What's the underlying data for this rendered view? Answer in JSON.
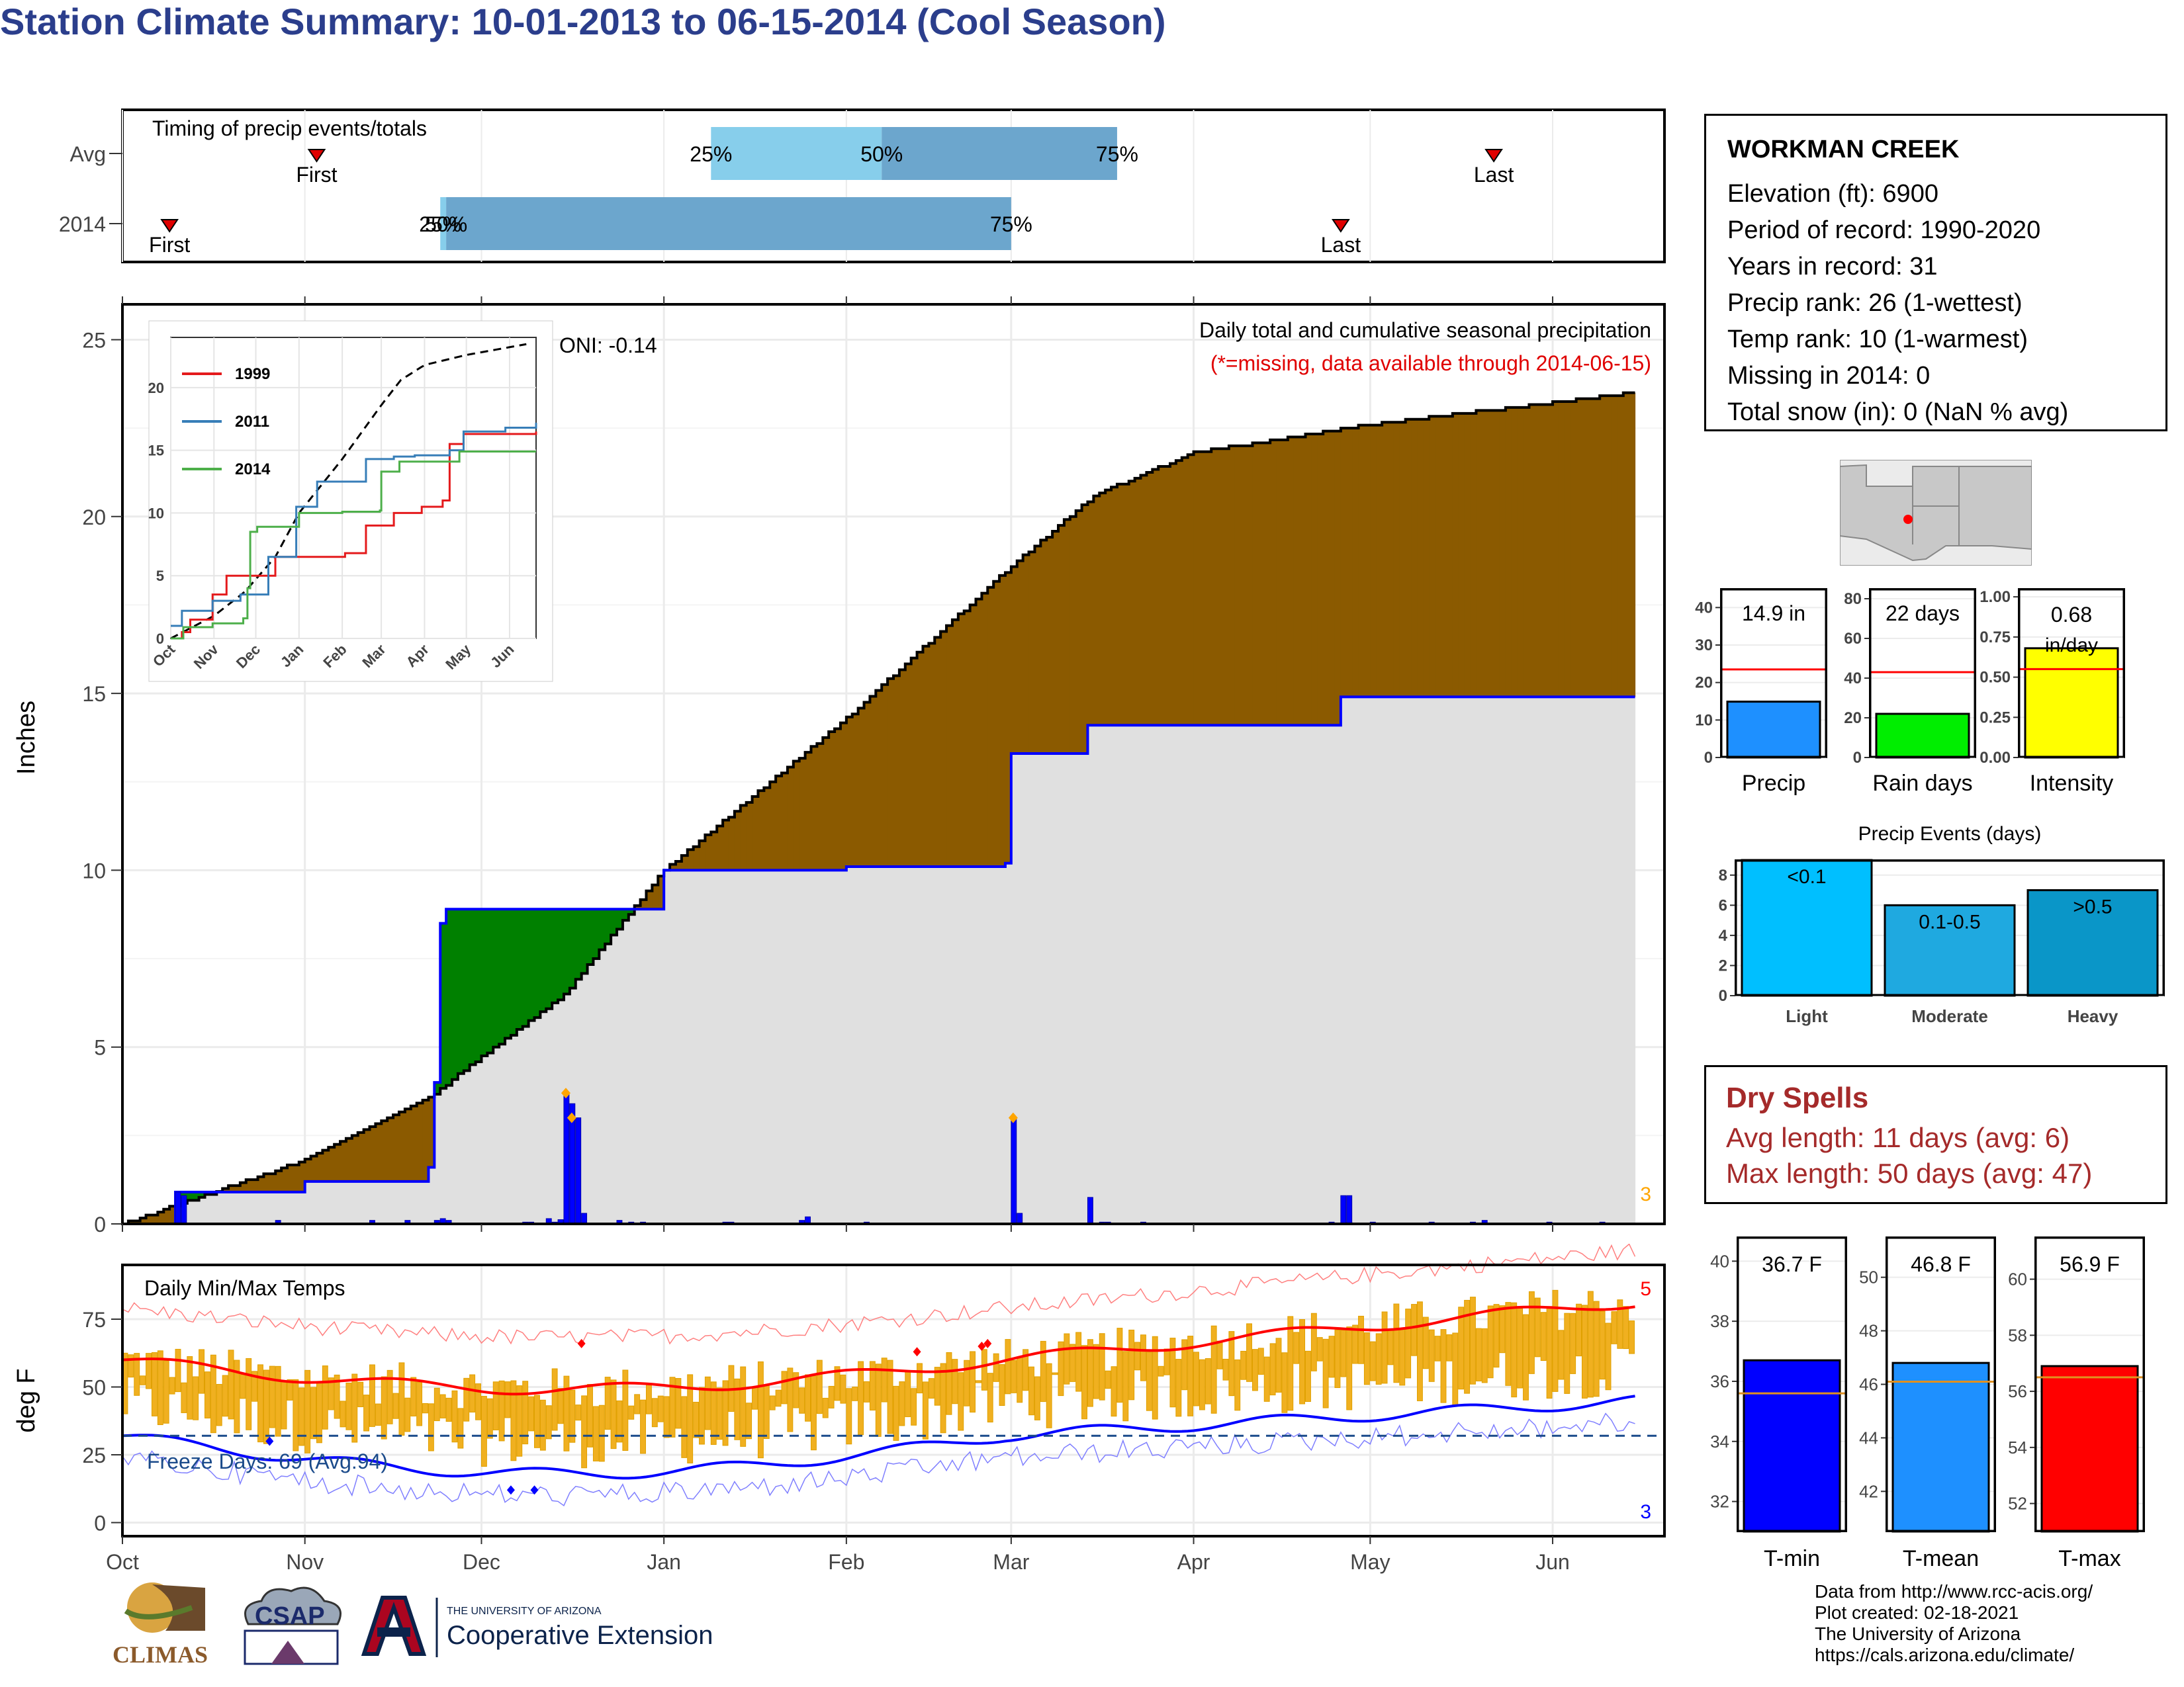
{
  "title": "Station Climate Summary: 10-01-2013 to 06-15-2014 (Cool Season)",
  "timing": {
    "label": "Timing of precip events/totals",
    "rows": [
      {
        "name": "Avg",
        "first": "First",
        "last": "Last",
        "p25": "25%",
        "p50": "50%",
        "p75": "75%",
        "p25_date": "2014-01-09",
        "p50_date": "2014-02-07",
        "p75_date": "2014-03-19",
        "first_date": "2013-11-03",
        "last_date": "2014-05-22"
      },
      {
        "name": "2014",
        "first": "First",
        "last": "Last",
        "p25": "25%",
        "p50": "50%",
        "p75": "75%",
        "p25_date": "2013-11-24",
        "p50_date": "2013-11-25",
        "p75_date": "2014-03-01",
        "first_date": "2013-10-09",
        "last_date": "2014-04-26"
      }
    ]
  },
  "main_chart": {
    "ylabel": "Inches",
    "oni": "ONI: -0.14",
    "caption": "Daily total and cumulative seasonal precipitation",
    "missing_note": "(*=missing, data available through 2014-06-15)",
    "count_label": "3",
    "x_ticks": [
      "Oct",
      "Nov",
      "Dec",
      "Jan",
      "Feb",
      "Mar",
      "Apr",
      "May",
      "Jun"
    ],
    "y_ticks": [
      "0",
      "5",
      "10",
      "15",
      "20",
      "25"
    ]
  },
  "inset": {
    "legend": [
      "1999",
      "2011",
      "2014"
    ],
    "colors": [
      "#e41a1c",
      "#377eb8",
      "#4daf4a"
    ],
    "x_ticks": [
      "Oct",
      "Nov",
      "Dec",
      "Jan",
      "Feb",
      "Mar",
      "Apr",
      "May",
      "Jun"
    ],
    "y_ticks": [
      "0",
      "5",
      "10",
      "15",
      "20"
    ]
  },
  "temp_chart": {
    "ylabel": "deg F",
    "label": "Daily Min/Max Temps",
    "freeze": "Freeze Days: 69 (Avg:94)",
    "count_max": "5",
    "count_min": "3",
    "x_ticks": [
      "Oct",
      "Nov",
      "Dec",
      "Jan",
      "Feb",
      "Mar",
      "Apr",
      "May",
      "Jun"
    ],
    "y_ticks": [
      "0",
      "25",
      "50",
      "75"
    ]
  },
  "info": {
    "station": "WORKMAN CREEK",
    "elevation": "Elevation (ft): 6900",
    "period": "Period of record: 1990-2020",
    "years": "Years in record: 31",
    "precip_rank": "Precip rank: 26 (1-wettest)",
    "temp_rank": "Temp rank: 10 (1-warmest)",
    "missing": "Missing in 2014: 0",
    "snow": "Total snow (in): 0 (NaN % avg)"
  },
  "mini_bars": [
    {
      "label": "Precip",
      "value_text": "14.9 in",
      "value": 14.9,
      "avg": 23.5,
      "max": 45,
      "ticks": [
        "0",
        "10",
        "20",
        "30",
        "40"
      ],
      "color": "#1e90ff"
    },
    {
      "label": "Rain days",
      "value_text": "22 days",
      "value": 22,
      "avg": 43,
      "max": 85,
      "ticks": [
        "0",
        "20",
        "40",
        "60",
        "80"
      ],
      "color": "#00ee00"
    },
    {
      "label": "Intensity",
      "value_text": "0.68 in/day",
      "value": 0.68,
      "avg": 0.55,
      "max": 1.05,
      "ticks": [
        "0.00",
        "0.25",
        "0.50",
        "0.75",
        "1.00"
      ],
      "color": "#ffff00"
    }
  ],
  "events": {
    "title": "Precip Events (days)",
    "categories": [
      "Light",
      "Moderate",
      "Heavy"
    ],
    "bar_labels": [
      "<0.1",
      "0.1-0.5",
      ">0.5"
    ],
    "values": [
      9,
      6,
      7
    ],
    "colors": [
      "#00bfff",
      "#1fa9e0",
      "#0a96c8"
    ],
    "ticks": [
      "0",
      "2",
      "4",
      "6",
      "8"
    ]
  },
  "dry_spells": {
    "title": "Dry Spells",
    "avg": "Avg length: 11 days (avg: 6)",
    "max": "Max length: 50 days (avg: 47)"
  },
  "temp_bars": [
    {
      "label": "T-min",
      "value_text": "36.7 F",
      "value": 36.7,
      "avg": 35.6,
      "ymin": 31,
      "ymax": 40.8,
      "ticks": [
        "32",
        "34",
        "36",
        "38",
        "40"
      ],
      "color": "#0000ff"
    },
    {
      "label": "T-mean",
      "value_text": "46.8 F",
      "value": 46.8,
      "avg": 46.1,
      "ymin": 40.5,
      "ymax": 51.5,
      "ticks": [
        "42",
        "44",
        "46",
        "48",
        "50"
      ],
      "color": "#1e90ff"
    },
    {
      "label": "T-max",
      "value_text": "56.9 F",
      "value": 56.9,
      "avg": 56.5,
      "ymin": 51,
      "ymax": 61.5,
      "ticks": [
        "52",
        "54",
        "56",
        "58",
        "60"
      ],
      "color": "#ff0000"
    }
  ],
  "footer": {
    "lines": [
      "Data from http://www.rcc-acis.org/",
      "Plot created: 02-18-2021",
      "The University of Arizona",
      "https://cals.arizona.edu/climate/"
    ],
    "logo_climas": "CLIMAS",
    "logo_csap": "CSAP",
    "logo_ua_small": "THE UNIVERSITY OF ARIZONA",
    "logo_ua_big": "Cooperative Extension"
  },
  "chart_data": {
    "type": "area",
    "series": [
      {
        "name": "2014 cumulative",
        "x": [
          "2013-10-01",
          "2013-10-10",
          "2013-11-01",
          "2013-11-22",
          "2013-11-23",
          "2013-11-24",
          "2013-11-25",
          "2014-01-01",
          "2014-02-01",
          "2014-02-28",
          "2014-03-01",
          "2014-03-14",
          "2014-04-26",
          "2014-06-15"
        ],
        "values": [
          0,
          0.9,
          1.2,
          1.6,
          4.0,
          8.5,
          8.9,
          10.0,
          10.1,
          10.2,
          13.3,
          14.1,
          14.9,
          14.9
        ]
      },
      {
        "name": "average cumulative",
        "x": [
          "2013-10-01",
          "2013-11-01",
          "2013-11-23",
          "2013-12-15",
          "2014-01-01",
          "2014-02-01",
          "2014-03-01",
          "2014-03-15",
          "2014-04-01",
          "2014-05-01",
          "2014-06-15"
        ],
        "values": [
          0,
          1.8,
          3.7,
          6.5,
          10.0,
          14.3,
          18.6,
          20.6,
          21.8,
          22.6,
          23.5
        ]
      }
    ],
    "ylim": [
      0,
      26
    ]
  }
}
